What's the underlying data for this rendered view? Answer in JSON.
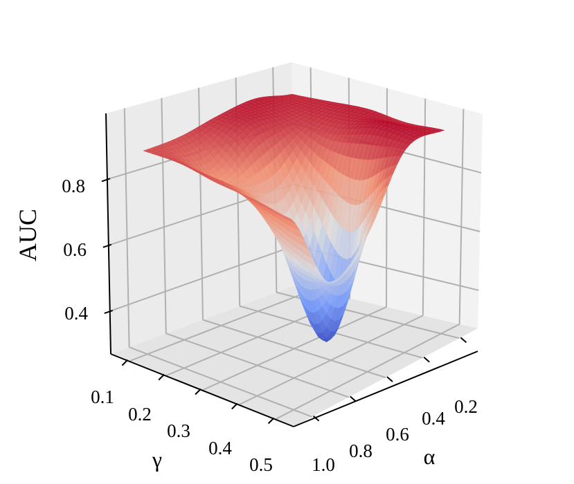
{
  "chart_data": {
    "type": "surface3d",
    "title": "",
    "zlabel": "AUC",
    "xlabel": "α",
    "ylabel": "γ",
    "x_ticks": [
      "0.2",
      "0.4",
      "0.6",
      "0.8",
      "1.0"
    ],
    "y_ticks": [
      "0.1",
      "0.2",
      "0.3",
      "0.4",
      "0.5"
    ],
    "z_ticks": [
      "0.4",
      "0.6",
      "0.8"
    ],
    "x": [
      0.2,
      0.4,
      0.6,
      0.8,
      1.0
    ],
    "y": [
      0.1,
      0.2,
      0.3,
      0.4,
      0.5
    ],
    "z": [
      [
        0.93,
        0.95,
        0.93,
        0.9,
        0.89
      ],
      [
        0.94,
        0.92,
        0.9,
        0.81,
        0.89
      ],
      [
        0.95,
        0.89,
        0.62,
        0.78,
        0.87
      ],
      [
        0.94,
        0.91,
        0.34,
        0.62,
        0.86
      ],
      [
        0.95,
        0.93,
        0.7,
        0.6,
        0.84
      ]
    ],
    "zlim": [
      0.27,
      1.0
    ],
    "colormap": "coolwarm",
    "colormap_low": "#3b4cc0",
    "colormap_mid": "#dddddd",
    "colormap_high": "#b40426",
    "grid": true
  }
}
